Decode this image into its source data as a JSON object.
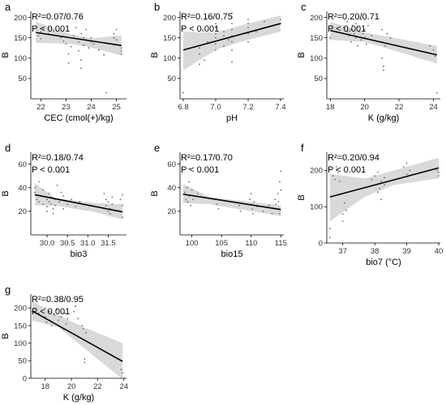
{
  "chart_data": [
    {
      "type": "scatter",
      "panel_letter": "a",
      "xlabel": "CEC (cmol(+)/kg)",
      "ylabel": "B",
      "stat_line": "R²=0.07/0.76",
      "p_line": "P < 0.001",
      "xlim": [
        21.6,
        25.4
      ],
      "ylim": [
        0,
        215
      ],
      "xticks": [
        22,
        23,
        24,
        25
      ],
      "yticks": [
        50,
        100,
        150,
        200
      ],
      "fit": {
        "x": [
          21.8,
          25.2
        ],
        "y": [
          163,
          131
        ]
      },
      "band": {
        "upper": [
          190,
          158,
          149,
          156
        ],
        "lower": [
          138,
          135,
          126,
          106
        ],
        "x": [
          21.8,
          23.2,
          24.0,
          25.2
        ]
      },
      "points": [
        [
          21.9,
          155
        ],
        [
          22.0,
          165
        ],
        [
          22.0,
          148
        ],
        [
          22.1,
          172
        ],
        [
          22.3,
          160
        ],
        [
          22.8,
          150
        ],
        [
          22.9,
          142
        ],
        [
          22.9,
          168
        ],
        [
          23.0,
          135
        ],
        [
          23.1,
          110
        ],
        [
          23.1,
          88
        ],
        [
          23.2,
          128
        ],
        [
          23.3,
          155
        ],
        [
          23.4,
          148
        ],
        [
          23.4,
          175
        ],
        [
          23.5,
          140
        ],
        [
          23.5,
          118
        ],
        [
          23.6,
          160
        ],
        [
          23.6,
          95
        ],
        [
          23.6,
          75
        ],
        [
          23.7,
          150
        ],
        [
          23.7,
          132
        ],
        [
          23.8,
          145
        ],
        [
          23.8,
          170
        ],
        [
          23.9,
          125
        ],
        [
          24.0,
          140
        ],
        [
          24.0,
          150
        ],
        [
          24.1,
          135
        ],
        [
          24.3,
          120
        ],
        [
          24.5,
          108
        ],
        [
          24.6,
          15
        ],
        [
          24.9,
          160
        ],
        [
          24.9,
          150
        ],
        [
          25.0,
          170
        ],
        [
          25.0,
          145
        ],
        [
          25.2,
          125
        ],
        [
          25.2,
          118
        ],
        [
          25.2,
          110
        ]
      ]
    },
    {
      "type": "scatter",
      "panel_letter": "b",
      "xlabel": "pH",
      "ylabel": "B",
      "stat_line": "R²=0.16/0.75",
      "p_line": "P < 0.001",
      "xlim": [
        6.78,
        7.42
      ],
      "ylim": [
        0,
        215
      ],
      "xticks": [
        6.8,
        7.0,
        7.2,
        7.4
      ],
      "xtick_labels": [
        "6.8",
        "7.0",
        "7.2",
        "7.4"
      ],
      "yticks": [
        50,
        100,
        150,
        200
      ],
      "fit": {
        "x": [
          6.8,
          7.4
        ],
        "y": [
          120,
          185
        ]
      },
      "band": {
        "upper": [
          165,
          163,
          180,
          205
        ],
        "lower": [
          70,
          120,
          140,
          165
        ],
        "x": [
          6.8,
          7.0,
          7.15,
          7.4
        ]
      },
      "points": [
        [
          6.8,
          15
        ],
        [
          6.9,
          85
        ],
        [
          6.9,
          110
        ],
        [
          6.9,
          125
        ],
        [
          6.92,
          170
        ],
        [
          6.93,
          95
        ],
        [
          6.95,
          140
        ],
        [
          7.0,
          120
        ],
        [
          7.0,
          135
        ],
        [
          7.0,
          150
        ],
        [
          7.0,
          160
        ],
        [
          7.0,
          175
        ],
        [
          7.0,
          185
        ],
        [
          7.05,
          130
        ],
        [
          7.05,
          155
        ],
        [
          7.05,
          165
        ],
        [
          7.08,
          145
        ],
        [
          7.1,
          120
        ],
        [
          7.1,
          140
        ],
        [
          7.1,
          155
        ],
        [
          7.1,
          170
        ],
        [
          7.1,
          185
        ],
        [
          7.1,
          200
        ],
        [
          7.1,
          210
        ],
        [
          7.1,
          90
        ],
        [
          7.2,
          160
        ],
        [
          7.2,
          175
        ],
        [
          7.2,
          185
        ],
        [
          7.2,
          195
        ],
        [
          7.2,
          140
        ],
        [
          7.25,
          165
        ],
        [
          7.3,
          175
        ],
        [
          7.3,
          190
        ],
        [
          7.4,
          185
        ],
        [
          7.4,
          195
        ]
      ]
    },
    {
      "type": "scatter",
      "panel_letter": "c",
      "xlabel": "K (g/kg)",
      "ylabel": "B",
      "stat_line": "R²=0.20/0.71",
      "p_line": "P < 0.001",
      "xlim": [
        17.8,
        24.4
      ],
      "ylim": [
        0,
        215
      ],
      "xticks": [
        18,
        20,
        22,
        24
      ],
      "yticks": [
        50,
        100,
        150,
        200
      ],
      "fit": {
        "x": [
          18.0,
          24.2
        ],
        "y": [
          168,
          108
        ]
      },
      "band": {
        "upper": [
          190,
          163,
          148,
          130
        ],
        "lower": [
          145,
          140,
          115,
          86
        ],
        "x": [
          18.0,
          20.0,
          22.0,
          24.2
        ]
      },
      "points": [
        [
          18.0,
          150
        ],
        [
          18.8,
          175
        ],
        [
          19.0,
          165
        ],
        [
          19.0,
          190
        ],
        [
          19.1,
          155
        ],
        [
          19.2,
          140
        ],
        [
          19.2,
          170
        ],
        [
          19.3,
          180
        ],
        [
          19.4,
          160
        ],
        [
          19.5,
          150
        ],
        [
          19.5,
          185
        ],
        [
          19.6,
          130
        ],
        [
          19.6,
          175
        ],
        [
          19.7,
          165
        ],
        [
          19.8,
          145
        ],
        [
          19.8,
          195
        ],
        [
          19.9,
          160
        ],
        [
          20.0,
          170
        ],
        [
          20.0,
          150
        ],
        [
          20.1,
          135
        ],
        [
          20.2,
          180
        ],
        [
          20.4,
          155
        ],
        [
          21.0,
          170
        ],
        [
          21.0,
          140
        ],
        [
          21.0,
          100
        ],
        [
          21.1,
          80
        ],
        [
          21.1,
          70
        ],
        [
          21.2,
          130
        ],
        [
          21.3,
          160
        ],
        [
          21.5,
          150
        ],
        [
          23.8,
          130
        ],
        [
          24.0,
          120
        ],
        [
          24.1,
          105
        ],
        [
          24.2,
          15
        ]
      ]
    },
    {
      "type": "scatter",
      "panel_letter": "d",
      "xlabel": "bio3",
      "ylabel": "B",
      "stat_line": "R²=0.18/0.74",
      "p_line": "P < 0.001",
      "xlim": [
        29.6,
        31.95
      ],
      "ylim": [
        0,
        70
      ],
      "xticks": [
        30.0,
        30.5,
        31.0,
        31.5
      ],
      "xtick_labels": [
        "30.0",
        "30.5",
        "31.0",
        "31.5"
      ],
      "yticks": [
        20,
        40,
        60
      ],
      "fit": {
        "x": [
          29.7,
          31.85
        ],
        "y": [
          34,
          19.5
        ]
      },
      "band": {
        "upper": [
          44,
          31,
          27,
          26
        ],
        "lower": [
          25,
          25,
          19,
          13
        ],
        "x": [
          29.7,
          30.2,
          31.2,
          31.85
        ]
      },
      "points": [
        [
          29.7,
          40
        ],
        [
          29.7,
          36
        ],
        [
          29.75,
          30
        ],
        [
          29.8,
          45
        ],
        [
          29.8,
          28
        ],
        [
          29.85,
          33
        ],
        [
          29.9,
          26
        ],
        [
          29.9,
          38
        ],
        [
          30.0,
          30
        ],
        [
          30.0,
          24
        ],
        [
          30.0,
          20
        ],
        [
          30.05,
          35
        ],
        [
          30.05,
          28
        ],
        [
          30.1,
          32
        ],
        [
          30.1,
          26
        ],
        [
          30.15,
          22
        ],
        [
          30.15,
          18
        ],
        [
          30.2,
          30
        ],
        [
          30.2,
          25
        ],
        [
          30.25,
          42
        ],
        [
          30.3,
          53
        ],
        [
          30.3,
          28
        ],
        [
          30.35,
          36
        ],
        [
          30.4,
          22
        ],
        [
          30.4,
          33
        ],
        [
          30.5,
          26
        ],
        [
          30.6,
          30
        ],
        [
          30.7,
          24
        ],
        [
          30.8,
          28
        ],
        [
          31.4,
          35
        ],
        [
          31.45,
          30
        ],
        [
          31.45,
          25
        ],
        [
          31.5,
          20
        ],
        [
          31.5,
          28
        ],
        [
          31.55,
          22
        ],
        [
          31.55,
          18
        ],
        [
          31.6,
          32
        ],
        [
          31.6,
          26
        ],
        [
          31.8,
          30
        ],
        [
          31.85,
          34
        ],
        [
          31.85,
          25
        ],
        [
          31.85,
          15
        ]
      ]
    },
    {
      "type": "scatter",
      "panel_letter": "e",
      "xlabel": "bio15",
      "ylabel": "B",
      "stat_line": "R²=0.17/0.70",
      "p_line": "P < 0.001",
      "xlim": [
        98,
        115.5
      ],
      "ylim": [
        0,
        70
      ],
      "xticks": [
        100,
        105,
        110,
        115
      ],
      "yticks": [
        20,
        40,
        60
      ],
      "fit": {
        "x": [
          98.5,
          115.0
        ],
        "y": [
          34.5,
          21.5
        ]
      },
      "band": {
        "upper": [
          43,
          32,
          28,
          25
        ],
        "lower": [
          27,
          26,
          20,
          16
        ],
        "x": [
          98.5,
          103.0,
          110.0,
          115.0
        ]
      },
      "points": [
        [
          98.8,
          36
        ],
        [
          99.0,
          30
        ],
        [
          99.2,
          40
        ],
        [
          99.3,
          28
        ],
        [
          99.5,
          56
        ],
        [
          99.5,
          45
        ],
        [
          99.6,
          33
        ],
        [
          99.8,
          25
        ],
        [
          100.0,
          38
        ],
        [
          100.2,
          30
        ],
        [
          101.0,
          35
        ],
        [
          104.0,
          30
        ],
        [
          104.2,
          26
        ],
        [
          104.5,
          22
        ],
        [
          108.0,
          25
        ],
        [
          108.2,
          20
        ],
        [
          109.8,
          30
        ],
        [
          110.0,
          35
        ],
        [
          110.0,
          26
        ],
        [
          110.2,
          22
        ],
        [
          110.3,
          18
        ],
        [
          110.5,
          28
        ],
        [
          111.0,
          24
        ],
        [
          112.0,
          20
        ],
        [
          113.0,
          25
        ],
        [
          113.5,
          18
        ],
        [
          114.0,
          30
        ],
        [
          114.2,
          26
        ],
        [
          114.3,
          22
        ],
        [
          114.5,
          35
        ],
        [
          114.6,
          28
        ],
        [
          114.8,
          45
        ],
        [
          114.8,
          18
        ],
        [
          115.0,
          54
        ],
        [
          115.0,
          38
        ]
      ]
    },
    {
      "type": "scatter",
      "panel_letter": "f",
      "xlabel": "bio7 (°C)",
      "ylabel": "B",
      "stat_line": "R²=0.20/0.94",
      "p_line": "P < 0.001",
      "xlim": [
        36.5,
        40.05
      ],
      "ylim": [
        0,
        250
      ],
      "xticks": [
        37,
        38,
        39,
        40
      ],
      "yticks": [
        0,
        100,
        200
      ],
      "fit": {
        "x": [
          36.6,
          40.0
        ],
        "y": [
          127,
          207
        ]
      },
      "band": {
        "upper": [
          190,
          178,
          200,
          235
        ],
        "lower": [
          60,
          128,
          160,
          178
        ],
        "x": [
          36.6,
          37.7,
          38.6,
          40.0
        ]
      },
      "points": [
        [
          36.6,
          15
        ],
        [
          36.6,
          40
        ],
        [
          36.7,
          185
        ],
        [
          36.75,
          175
        ],
        [
          36.8,
          200
        ],
        [
          36.8,
          210
        ],
        [
          36.85,
          195
        ],
        [
          36.9,
          170
        ],
        [
          37.0,
          80
        ],
        [
          37.0,
          60
        ],
        [
          37.05,
          110
        ],
        [
          37.1,
          90
        ],
        [
          37.9,
          175
        ],
        [
          38.0,
          160
        ],
        [
          38.0,
          185
        ],
        [
          38.1,
          140
        ],
        [
          38.1,
          195
        ],
        [
          38.15,
          150
        ],
        [
          38.2,
          170
        ],
        [
          38.2,
          120
        ],
        [
          38.3,
          180
        ],
        [
          38.3,
          160
        ],
        [
          38.9,
          210
        ],
        [
          39.0,
          190
        ],
        [
          39.0,
          220
        ],
        [
          39.1,
          200
        ],
        [
          39.95,
          200
        ],
        [
          40.0,
          195
        ],
        [
          40.0,
          185
        ]
      ]
    },
    {
      "type": "scatter",
      "panel_letter": "g",
      "xlabel": "K (g/kg)",
      "ylabel": "B",
      "stat_line": "R²=0.38/0.95",
      "p_line": "P < 0.001",
      "xlim": [
        16.9,
        24.2
      ],
      "ylim": [
        0,
        240
      ],
      "xticks": [
        18,
        20,
        22,
        24
      ],
      "yticks": [
        0,
        50,
        100,
        150,
        200
      ],
      "fit": {
        "x": [
          17.0,
          23.9
        ],
        "y": [
          192,
          48
        ]
      },
      "band": {
        "upper": [
          220,
          180,
          145,
          100
        ],
        "lower": [
          165,
          145,
          85,
          -3
        ],
        "x": [
          17.0,
          19.0,
          21.0,
          23.9
        ]
      },
      "points": [
        [
          17.2,
          200
        ],
        [
          17.5,
          185
        ],
        [
          18.0,
          200
        ],
        [
          18.0,
          175
        ],
        [
          18.1,
          160
        ],
        [
          18.3,
          190
        ],
        [
          18.5,
          150
        ],
        [
          18.7,
          180
        ],
        [
          18.9,
          195
        ],
        [
          19.0,
          165
        ],
        [
          19.2,
          175
        ],
        [
          19.4,
          140
        ],
        [
          19.5,
          185
        ],
        [
          19.6,
          155
        ],
        [
          19.7,
          170
        ],
        [
          20.2,
          190
        ],
        [
          20.3,
          205
        ],
        [
          20.5,
          170
        ],
        [
          20.8,
          150
        ],
        [
          20.9,
          140
        ],
        [
          21.0,
          55
        ],
        [
          21.0,
          45
        ],
        [
          21.1,
          130
        ],
        [
          23.8,
          25
        ],
        [
          23.9,
          15
        ]
      ]
    }
  ]
}
